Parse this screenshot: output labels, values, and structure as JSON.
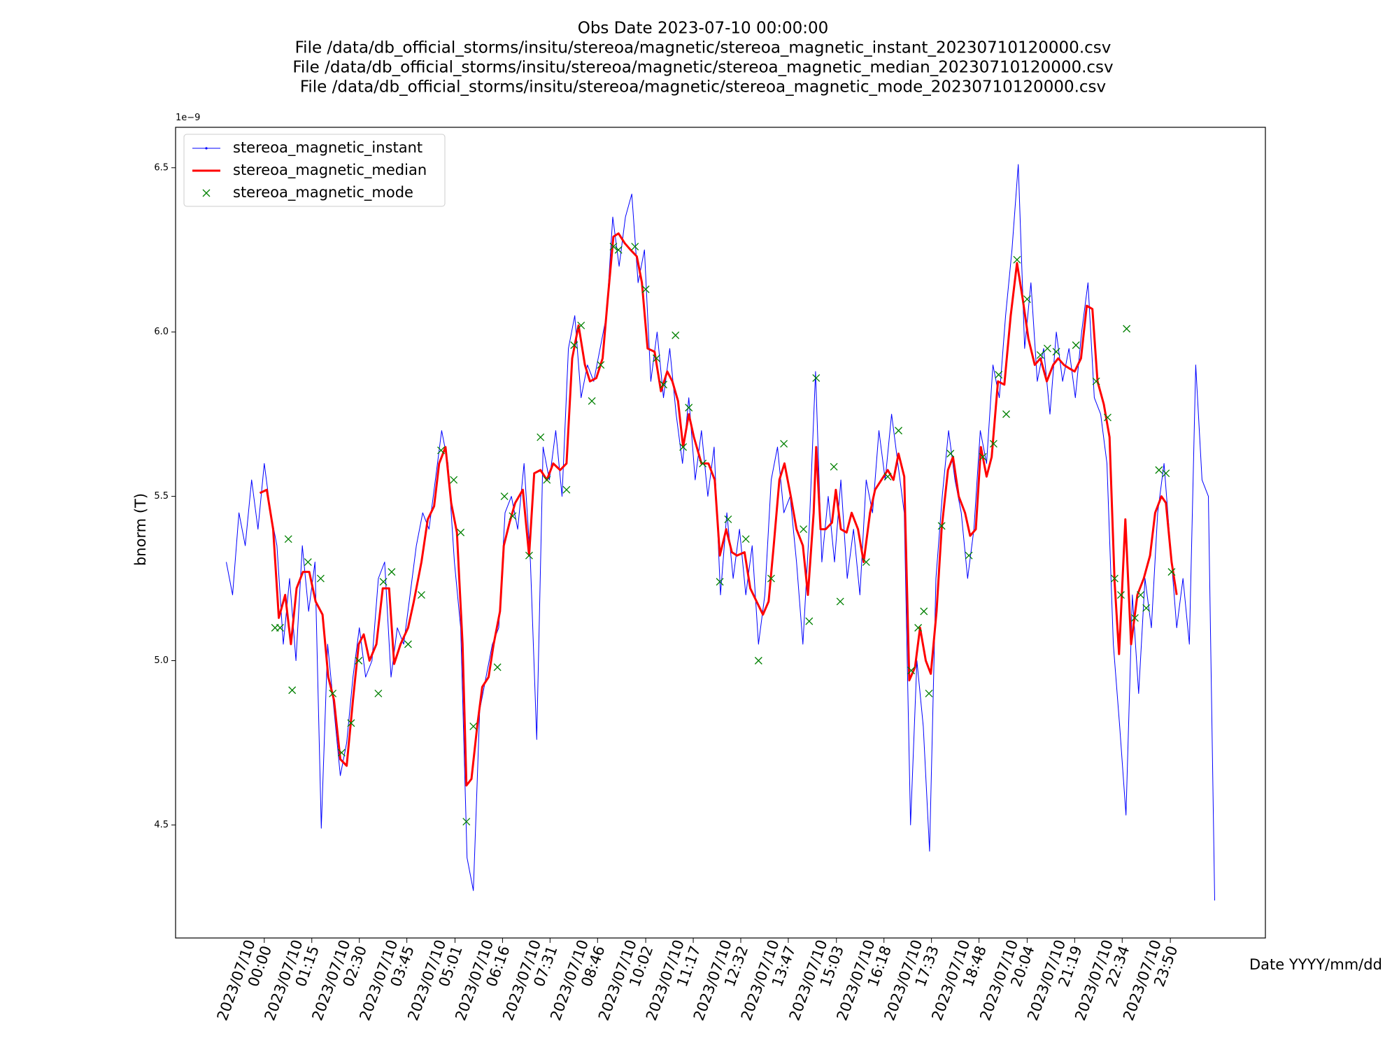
{
  "chart_data": {
    "type": "line",
    "title": "Obs Date 2023-07-10 00:00:00",
    "subtitle": [
      "File /data/db_official_storms/insitu/stereoa/magnetic/stereoa_magnetic_instant_20230710120000.csv",
      "File /data/db_official_storms/insitu/stereoa/magnetic/stereoa_magnetic_median_20230710120000.csv",
      "File /data/db_official_storms/insitu/stereoa/magnetic/stereoa_magnetic_mode_20230710120000.csv"
    ],
    "x_label": "Date YYYY/mm/dd",
    "y_label": "bnorm (T)",
    "y_offset_label": "1e−9",
    "legend": "upper left",
    "xlim": [
      -140,
      1580
    ],
    "ylim": [
      4.156,
      6.623
    ],
    "xticks": [
      {
        "value": 0,
        "label": "2023/07/10\n00:00"
      },
      {
        "value": 75,
        "label": "2023/07/10\n01:15"
      },
      {
        "value": 150,
        "label": "2023/07/10\n02:30"
      },
      {
        "value": 225,
        "label": "2023/07/10\n03:45"
      },
      {
        "value": 301,
        "label": "2023/07/10\n05:01"
      },
      {
        "value": 376,
        "label": "2023/07/10\n06:16"
      },
      {
        "value": 451,
        "label": "2023/07/10\n07:31"
      },
      {
        "value": 526,
        "label": "2023/07/10\n08:46"
      },
      {
        "value": 602,
        "label": "2023/07/10\n10:02"
      },
      {
        "value": 677,
        "label": "2023/07/10\n11:17"
      },
      {
        "value": 752,
        "label": "2023/07/10\n12:32"
      },
      {
        "value": 827,
        "label": "2023/07/10\n13:47"
      },
      {
        "value": 903,
        "label": "2023/07/10\n15:03"
      },
      {
        "value": 978,
        "label": "2023/07/10\n16:18"
      },
      {
        "value": 1053,
        "label": "2023/07/10\n17:33"
      },
      {
        "value": 1128,
        "label": "2023/07/10\n18:48"
      },
      {
        "value": 1204,
        "label": "2023/07/10\n20:04"
      },
      {
        "value": 1279,
        "label": "2023/07/10\n21:19"
      },
      {
        "value": 1354,
        "label": "2023/07/10\n22:34"
      },
      {
        "value": 1430,
        "label": "2023/07/10\n23:50"
      }
    ],
    "yticks": [
      4.5,
      {
        "value": 5,
        "label": "5.0"
      },
      5.5,
      {
        "value": 6,
        "label": "6.0"
      },
      6.5
    ],
    "series": [
      {
        "name": "stereoa_magnetic_instant",
        "color": "#0000ff",
        "style": "line-dots",
        "x": [
          -60,
          -50,
          -40,
          -30,
          -20,
          -10,
          0,
          10,
          20,
          30,
          40,
          50,
          60,
          70,
          80,
          90,
          100,
          110,
          120,
          130,
          140,
          150,
          160,
          170,
          180,
          190,
          200,
          210,
          220,
          230,
          240,
          250,
          260,
          270,
          280,
          290,
          300,
          310,
          320,
          330,
          340,
          350,
          360,
          370,
          380,
          390,
          400,
          410,
          420,
          430,
          440,
          450,
          460,
          470,
          480,
          490,
          500,
          510,
          520,
          530,
          540,
          550,
          560,
          570,
          580,
          590,
          600,
          610,
          620,
          630,
          640,
          650,
          660,
          670,
          680,
          690,
          700,
          710,
          720,
          730,
          740,
          750,
          760,
          770,
          780,
          790,
          800,
          810,
          820,
          830,
          840,
          850,
          860,
          870,
          880,
          890,
          900,
          910,
          920,
          930,
          940,
          950,
          960,
          970,
          980,
          990,
          1000,
          1010,
          1020,
          1030,
          1040,
          1050,
          1060,
          1070,
          1080,
          1090,
          1100,
          1110,
          1120,
          1130,
          1140,
          1150,
          1160,
          1170,
          1180,
          1190,
          1200,
          1210,
          1220,
          1230,
          1240,
          1250,
          1260,
          1270,
          1280,
          1290,
          1300,
          1310,
          1320,
          1330,
          1340,
          1350,
          1360,
          1370,
          1380,
          1390,
          1400,
          1410,
          1420,
          1430,
          1440,
          1450,
          1460,
          1470,
          1480,
          1490,
          1500
        ],
        "values": [
          5.3,
          5.2,
          5.45,
          5.35,
          5.55,
          5.4,
          5.6,
          5.45,
          5.35,
          5.05,
          5.25,
          5.0,
          5.35,
          5.15,
          5.3,
          4.49,
          5.05,
          4.85,
          4.65,
          4.75,
          4.95,
          5.1,
          4.95,
          5.0,
          5.25,
          5.3,
          4.95,
          5.1,
          5.05,
          5.2,
          5.35,
          5.45,
          5.4,
          5.55,
          5.7,
          5.6,
          5.3,
          5.1,
          4.4,
          4.3,
          4.85,
          4.95,
          5.05,
          5.1,
          5.45,
          5.5,
          5.4,
          5.6,
          5.3,
          4.76,
          5.65,
          5.55,
          5.7,
          5.5,
          5.95,
          6.05,
          5.8,
          5.9,
          5.85,
          5.95,
          6.05,
          6.35,
          6.2,
          6.35,
          6.42,
          6.15,
          6.25,
          5.85,
          6.0,
          5.8,
          5.95,
          5.75,
          5.6,
          5.8,
          5.55,
          5.7,
          5.5,
          5.65,
          5.2,
          5.45,
          5.25,
          5.4,
          5.2,
          5.35,
          5.05,
          5.2,
          5.55,
          5.65,
          5.45,
          5.5,
          5.3,
          5.05,
          5.4,
          5.88,
          5.3,
          5.5,
          5.3,
          5.55,
          5.25,
          5.4,
          5.2,
          5.55,
          5.45,
          5.7,
          5.55,
          5.75,
          5.6,
          5.45,
          4.5,
          5.0,
          4.8,
          4.42,
          5.25,
          5.5,
          5.7,
          5.55,
          5.45,
          5.25,
          5.4,
          5.7,
          5.6,
          5.9,
          5.8,
          6.05,
          6.25,
          6.51,
          5.95,
          6.15,
          5.85,
          5.95,
          5.75,
          6.0,
          5.85,
          5.95,
          5.8,
          6.0,
          6.15,
          5.8,
          5.75,
          5.6,
          5.05,
          4.8,
          4.53,
          5.2,
          4.9,
          5.25,
          5.1,
          5.45,
          5.6,
          5.35,
          5.1,
          5.25,
          5.05,
          5.9,
          5.55,
          5.5,
          4.27
        ]
      },
      {
        "name": "stereoa_magnetic_median",
        "color": "#ff0000",
        "style": "line",
        "x": [
          -7,
          4,
          14,
          23,
          33,
          42,
          51,
          61,
          71,
          81,
          92,
          101,
          110,
          120,
          130,
          140,
          149,
          157,
          166,
          177,
          187,
          197,
          205,
          215,
          227,
          236,
          248,
          258,
          268,
          276,
          286,
          295,
          304,
          313,
          319,
          327,
          336,
          344,
          354,
          362,
          372,
          378,
          387,
          396,
          408,
          418,
          426,
          436,
          446,
          456,
          467,
          477,
          486,
          496,
          506,
          514,
          524,
          534,
          542,
          551,
          559,
          569,
          578,
          588,
          596,
          605,
          616,
          626,
          636,
          644,
          653,
          661,
          670,
          678,
          690,
          701,
          711,
          719,
          729,
          738,
          746,
          758,
          767,
          777,
          787,
          796,
          804,
          813,
          821,
          831,
          840,
          850,
          858,
          867,
          871,
          878,
          886,
          896,
          902,
          910,
          919,
          927,
          937,
          946,
          956,
          964,
          974,
          984,
          993,
          1001,
          1010,
          1018,
          1027,
          1035,
          1044,
          1052,
          1061,
          1069,
          1079,
          1087,
          1096,
          1106,
          1114,
          1123,
          1131,
          1140,
          1148,
          1158,
          1168,
          1178,
          1188,
          1197,
          1206,
          1216,
          1225,
          1235,
          1245,
          1253,
          1262,
          1270,
          1279,
          1289,
          1298,
          1307,
          1315,
          1325,
          1334,
          1342,
          1349,
          1359,
          1368,
          1378,
          1388,
          1398,
          1406,
          1416,
          1423,
          1432,
          1440
        ],
        "values": [
          5.51,
          5.52,
          5.4,
          5.13,
          5.2,
          5.05,
          5.22,
          5.27,
          5.27,
          5.18,
          5.14,
          4.95,
          4.88,
          4.7,
          4.68,
          4.88,
          5.05,
          5.08,
          5.0,
          5.05,
          5.22,
          5.22,
          4.99,
          5.05,
          5.1,
          5.18,
          5.3,
          5.43,
          5.47,
          5.6,
          5.65,
          5.48,
          5.39,
          5.05,
          4.62,
          4.64,
          4.8,
          4.92,
          4.95,
          5.05,
          5.15,
          5.35,
          5.42,
          5.48,
          5.52,
          5.32,
          5.57,
          5.58,
          5.55,
          5.6,
          5.58,
          5.6,
          5.92,
          6.02,
          5.9,
          5.85,
          5.86,
          5.92,
          6.1,
          6.29,
          6.3,
          6.27,
          6.25,
          6.23,
          6.15,
          5.95,
          5.94,
          5.82,
          5.88,
          5.85,
          5.79,
          5.65,
          5.75,
          5.68,
          5.6,
          5.6,
          5.55,
          5.32,
          5.4,
          5.33,
          5.32,
          5.33,
          5.22,
          5.18,
          5.14,
          5.18,
          5.35,
          5.55,
          5.6,
          5.5,
          5.4,
          5.35,
          5.2,
          5.45,
          5.65,
          5.4,
          5.4,
          5.42,
          5.52,
          5.4,
          5.39,
          5.45,
          5.4,
          5.3,
          5.45,
          5.52,
          5.55,
          5.58,
          5.55,
          5.63,
          5.56,
          4.94,
          4.98,
          5.1,
          5.0,
          4.96,
          5.15,
          5.4,
          5.58,
          5.62,
          5.5,
          5.45,
          5.38,
          5.4,
          5.65,
          5.56,
          5.62,
          5.85,
          5.84,
          6.05,
          6.21,
          6.1,
          5.98,
          5.9,
          5.92,
          5.85,
          5.9,
          5.92,
          5.9,
          5.89,
          5.88,
          5.92,
          6.08,
          6.07,
          5.85,
          5.78,
          5.68,
          5.24,
          5.02,
          5.43,
          5.05,
          5.2,
          5.25,
          5.32,
          5.45,
          5.5,
          5.48,
          5.3,
          5.2
        ]
      },
      {
        "name": "stereoa_magnetic_mode",
        "color": "#008000",
        "style": "x",
        "x": [
          17,
          25,
          38,
          44,
          69,
          89,
          108,
          122,
          137,
          149,
          180,
          188,
          201,
          227,
          248,
          279,
          299,
          310,
          319,
          330,
          368,
          379,
          392,
          418,
          436,
          446,
          477,
          489,
          500,
          517,
          531,
          551,
          559,
          585,
          602,
          619,
          630,
          649,
          661,
          670,
          692,
          719,
          732,
          760,
          780,
          800,
          820,
          851,
          860,
          871,
          899,
          909,
          950,
          984,
          1001,
          1021,
          1032,
          1041,
          1049,
          1069,
          1083,
          1112,
          1134,
          1151,
          1159,
          1171,
          1188,
          1204,
          1225,
          1236,
          1250,
          1281,
          1313,
          1331,
          1342,
          1352,
          1361,
          1374,
          1383,
          1392,
          1412,
          1423,
          1432
        ],
        "values": [
          5.1,
          5.1,
          5.37,
          4.91,
          5.3,
          5.25,
          4.9,
          4.72,
          4.81,
          5.0,
          4.9,
          5.24,
          5.27,
          5.05,
          5.2,
          5.64,
          5.55,
          5.39,
          4.51,
          4.8,
          4.98,
          5.5,
          5.44,
          5.32,
          5.68,
          5.55,
          5.52,
          5.96,
          6.02,
          5.79,
          5.9,
          6.26,
          6.25,
          6.26,
          6.13,
          5.92,
          5.84,
          5.99,
          5.65,
          5.77,
          5.6,
          5.24,
          5.43,
          5.37,
          5.0,
          5.25,
          5.66,
          5.4,
          5.12,
          5.86,
          5.59,
          5.18,
          5.3,
          5.56,
          5.7,
          4.97,
          5.1,
          5.15,
          4.9,
          5.41,
          5.63,
          5.32,
          5.62,
          5.66,
          5.87,
          5.75,
          6.22,
          6.1,
          5.93,
          5.95,
          5.94,
          5.96,
          5.85,
          5.74,
          5.25,
          5.2,
          6.01,
          5.13,
          5.2,
          5.16,
          5.58,
          5.57,
          5.27
        ]
      }
    ]
  }
}
